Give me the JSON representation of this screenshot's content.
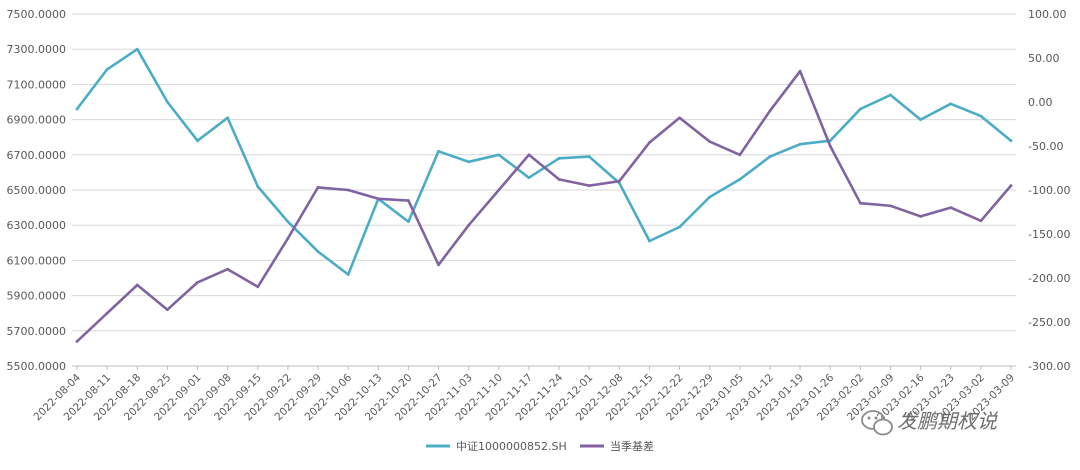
{
  "chart_data": {
    "type": "line",
    "title": "",
    "x": [
      "2022-08-04",
      "2022-08-11",
      "2022-08-18",
      "2022-08-25",
      "2022-09-01",
      "2022-09-08",
      "2022-09-15",
      "2022-09-22",
      "2022-09-29",
      "2022-10-06",
      "2022-10-13",
      "2022-10-20",
      "2022-10-27",
      "2022-11-03",
      "2022-11-10",
      "2022-11-17",
      "2022-11-24",
      "2022-12-01",
      "2022-12-08",
      "2022-12-15",
      "2022-12-22",
      "2022-12-29",
      "2023-01-05",
      "2023-01-12",
      "2023-01-19",
      "2023-01-26",
      "2023-02-02",
      "2023-02-09",
      "2023-02-16",
      "2023-02-23",
      "2023-03-02",
      "2023-03-09"
    ],
    "y_left_ticks": [
      "5500.0000",
      "5700.0000",
      "5900.0000",
      "6100.0000",
      "6300.0000",
      "6500.0000",
      "6700.0000",
      "6900.0000",
      "7100.0000",
      "7300.0000",
      "7500.0000"
    ],
    "y_right_ticks": [
      "-300.00",
      "-250.00",
      "-200.00",
      "-150.00",
      "-100.00",
      "-50.00",
      "0.00",
      "50.00",
      "100.00"
    ],
    "ylim_left": [
      5500,
      7500
    ],
    "ylim_right": [
      -300,
      100
    ],
    "grid": true,
    "legend_position": "bottom",
    "series": [
      {
        "name": "中证1000000852.SH",
        "axis": "left",
        "color": "#4bacc6",
        "values": [
          6960,
          7185,
          7300,
          7000,
          6780,
          6910,
          6520,
          6320,
          6150,
          6020,
          6450,
          6320,
          6720,
          6660,
          6700,
          6570,
          6680,
          6690,
          6540,
          6210,
          6290,
          6460,
          6560,
          6690,
          6760,
          6780,
          6960,
          7040,
          6900,
          6990,
          6920,
          6780
        ]
      },
      {
        "name": "当季基差",
        "axis": "right",
        "color": "#8064a2",
        "values": [
          -272,
          -240,
          -208,
          -236,
          -205,
          -190,
          -210,
          -155,
          -97,
          -100,
          -110,
          -112,
          -185,
          -140,
          -100,
          -60,
          -88,
          -95,
          -90,
          -46,
          -18,
          -45,
          -60,
          -10,
          35,
          -50,
          -115,
          -118,
          -130,
          -120,
          -135,
          -95
        ]
      }
    ]
  },
  "legend": [
    {
      "label": "中证1000000852.SH",
      "color": "#4bacc6"
    },
    {
      "label": "当季基差",
      "color": "#8064a2"
    }
  ],
  "watermark": {
    "text": "发鹏期权说",
    "icon": "wechat-icon"
  }
}
